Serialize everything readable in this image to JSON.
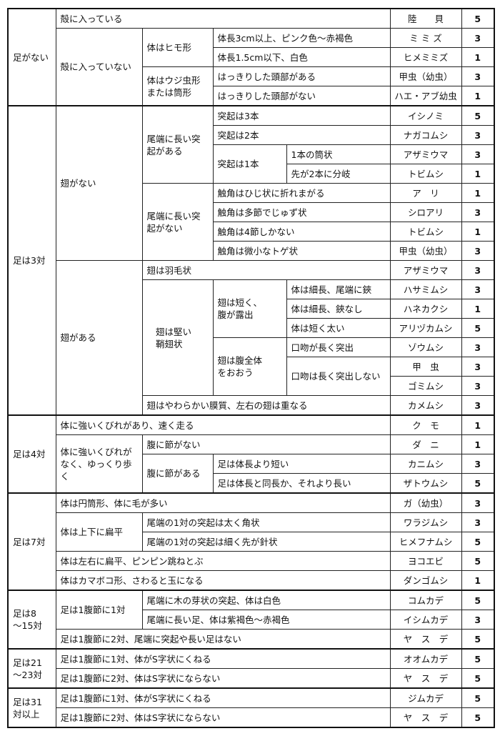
{
  "rows": [
    {
      "cells": [
        {
          "t": "足がない",
          "rs": 5,
          "grp": true
        },
        {
          "t": "殻に入っている",
          "cs": 4
        }
      ],
      "name": "陸　　貝",
      "score": 5
    },
    {
      "cells": [
        {
          "t": "殻に入っていない",
          "rs": 4
        },
        {
          "t": "体はヒモ形",
          "rs": 2
        },
        {
          "t": "体長3cm以上、ピンク色～赤褐色",
          "cs": 2
        }
      ],
      "name": "ミ ミ ズ",
      "score": 3
    },
    {
      "cells": [
        {
          "t": "体長1.5cm以下、白色",
          "cs": 2
        }
      ],
      "name": "ヒメミミズ",
      "score": 1
    },
    {
      "cells": [
        {
          "t": "体はウジ虫形\nまたは筒形",
          "rs": 2
        },
        {
          "t": "はっきりした頭部がある",
          "cs": 2
        }
      ],
      "name": "甲虫（幼虫）",
      "score": 3
    },
    {
      "cells": [
        {
          "t": "はっきりした頭部がない",
          "cs": 2
        }
      ],
      "name": "ハエ・アブ幼虫",
      "score": 1
    },
    {
      "cells": [
        {
          "t": "足は3対",
          "rs": 16,
          "grp": true
        },
        {
          "t": "翅がない",
          "rs": 8
        },
        {
          "t": "尾端に長い突\n起がある",
          "rs": 4
        },
        {
          "t": "突起は3本",
          "cs": 2
        }
      ],
      "name": "イシノミ",
      "score": 5
    },
    {
      "cells": [
        {
          "t": "突起は2本",
          "cs": 2
        }
      ],
      "name": "ナガコムシ",
      "score": 3
    },
    {
      "cells": [
        {
          "t": "突起は1本",
          "rs": 2
        },
        {
          "t": "1本の筒状"
        }
      ],
      "name": "アザミウマ",
      "score": 3
    },
    {
      "cells": [
        {
          "t": "先が2本に分岐"
        }
      ],
      "name": "トビムシ",
      "score": 1
    },
    {
      "cells": [
        {
          "t": "尾端に長い突\n起がない",
          "rs": 4
        },
        {
          "t": "触角はひじ状に折れまがる",
          "cs": 2
        }
      ],
      "name": "ア　リ",
      "score": 1
    },
    {
      "cells": [
        {
          "t": "触角は多節でじゅず状",
          "cs": 2
        }
      ],
      "name": "シロアリ",
      "score": 3
    },
    {
      "cells": [
        {
          "t": "触角は4節しかない",
          "cs": 2
        }
      ],
      "name": "トビムシ",
      "score": 1
    },
    {
      "cells": [
        {
          "t": "触角は微小なトゲ状",
          "cs": 2
        }
      ],
      "name": "甲虫（幼虫）",
      "score": 3
    },
    {
      "cells": [
        {
          "t": "翅がある",
          "rs": 8
        },
        {
          "t": "翅は羽毛状",
          "cs": 3
        }
      ],
      "name": "アザミウマ",
      "score": 3
    },
    {
      "cells": [
        {
          "t": "　翅は堅い\n　鞘翅状",
          "rs": 6
        },
        {
          "t": "翅は短く、\n腹が露出",
          "rs": 3
        },
        {
          "t": "体は細長、尾端に鋏"
        }
      ],
      "name": "ハサミムシ",
      "score": 3
    },
    {
      "cells": [
        {
          "t": "体は細長、鋏なし"
        }
      ],
      "name": "ハネカクシ",
      "score": 1
    },
    {
      "cells": [
        {
          "t": "体は短く太い"
        }
      ],
      "name": "アリヅカムシ",
      "score": 5
    },
    {
      "cells": [
        {
          "t": "翅は腹全体\nをおおう",
          "rs": 3
        },
        {
          "t": "口吻が長く突出"
        }
      ],
      "name": "ゾウムシ",
      "score": 3
    },
    {
      "cells": [
        {
          "t": "口吻は長く突出しない",
          "rs": 2
        }
      ],
      "name": "甲　虫",
      "score": 3
    },
    {
      "cells": [],
      "name": "ゴミムシ",
      "score": 3
    },
    {
      "cells": [
        {
          "t": "翅はやわらかい膜質、左右の翅は重なる",
          "cs": 3
        }
      ],
      "name": "カメムシ",
      "score": 3
    },
    {
      "cells": [
        {
          "t": "足は4対",
          "rs": 4,
          "grp": true
        },
        {
          "t": "体に強いくびれがあり、速く走る",
          "cs": 4
        }
      ],
      "name": "ク　モ",
      "score": 1
    },
    {
      "cells": [
        {
          "t": "体に強いくびれが\nなく、ゆっくり歩\nく",
          "rs": 3
        },
        {
          "t": "腹に節がない",
          "cs": 3
        }
      ],
      "name": "ダ　ニ",
      "score": 1
    },
    {
      "cells": [
        {
          "t": "腹に節がある",
          "rs": 2
        },
        {
          "t": "足は体長より短い",
          "cs": 2
        }
      ],
      "name": "カニムシ",
      "score": 3
    },
    {
      "cells": [
        {
          "t": "足は体長と同長か、それより長い",
          "cs": 2
        }
      ],
      "name": "ザトウムシ",
      "score": 5
    },
    {
      "cells": [
        {
          "t": "足は7対",
          "rs": 5,
          "grp": true
        },
        {
          "t": "体は円筒形、体に毛が多い",
          "cs": 4
        }
      ],
      "name": "ガ（幼虫）",
      "score": 3
    },
    {
      "cells": [
        {
          "t": "体は上下に扁平",
          "rs": 2
        },
        {
          "t": "尾端の1対の突起は太く角状",
          "cs": 3
        }
      ],
      "name": "ワラジムシ",
      "score": 3
    },
    {
      "cells": [
        {
          "t": "尾端の1対の突起は細く先が針状",
          "cs": 3
        }
      ],
      "name": "ヒメフナムシ",
      "score": 5
    },
    {
      "cells": [
        {
          "t": "体は左右に扁平、ピンピン跳ねとぶ",
          "cs": 4
        }
      ],
      "name": "ヨコエビ",
      "score": 5
    },
    {
      "cells": [
        {
          "t": "体はカマボコ形、さわると玉になる",
          "cs": 4
        }
      ],
      "name": "ダンゴムシ",
      "score": 1
    },
    {
      "cells": [
        {
          "t": "足は8\n～15対",
          "rs": 3,
          "grp": true
        },
        {
          "t": "足は1腹節に1対",
          "rs": 2
        },
        {
          "t": "尾端に木の芽状の突起、体は白色",
          "cs": 3
        }
      ],
      "name": "コムカデ",
      "score": 5
    },
    {
      "cells": [
        {
          "t": "尾端に長い足、体は紫褐色～赤褐色",
          "cs": 3
        }
      ],
      "name": "イシムカデ",
      "score": 3
    },
    {
      "cells": [
        {
          "t": "足は1腹節に2対、尾端に突起や長い足はない",
          "cs": 4
        }
      ],
      "name": "ヤ　ス　デ",
      "score": 5
    },
    {
      "cells": [
        {
          "t": "足は21\n～23対",
          "rs": 2,
          "grp": true
        },
        {
          "t": "足は1腹節に1対、体がS字状にくねる",
          "cs": 4
        }
      ],
      "name": "オオムカデ",
      "score": 5
    },
    {
      "cells": [
        {
          "t": "足は1腹節に2対、体はS字状にならない",
          "cs": 4
        }
      ],
      "name": "ヤ　ス　デ",
      "score": 5
    },
    {
      "cells": [
        {
          "t": "足は31\n対以上",
          "rs": 2,
          "grp": true
        },
        {
          "t": "足は1腹節に1対、体がS字状にくねる",
          "cs": 4
        }
      ],
      "name": "ジムカデ",
      "score": 5
    },
    {
      "cells": [
        {
          "t": "足は1腹節に2対、体はS字状にならない",
          "cs": 4
        }
      ],
      "name": "ヤ　ス　デ",
      "score": 5
    }
  ]
}
